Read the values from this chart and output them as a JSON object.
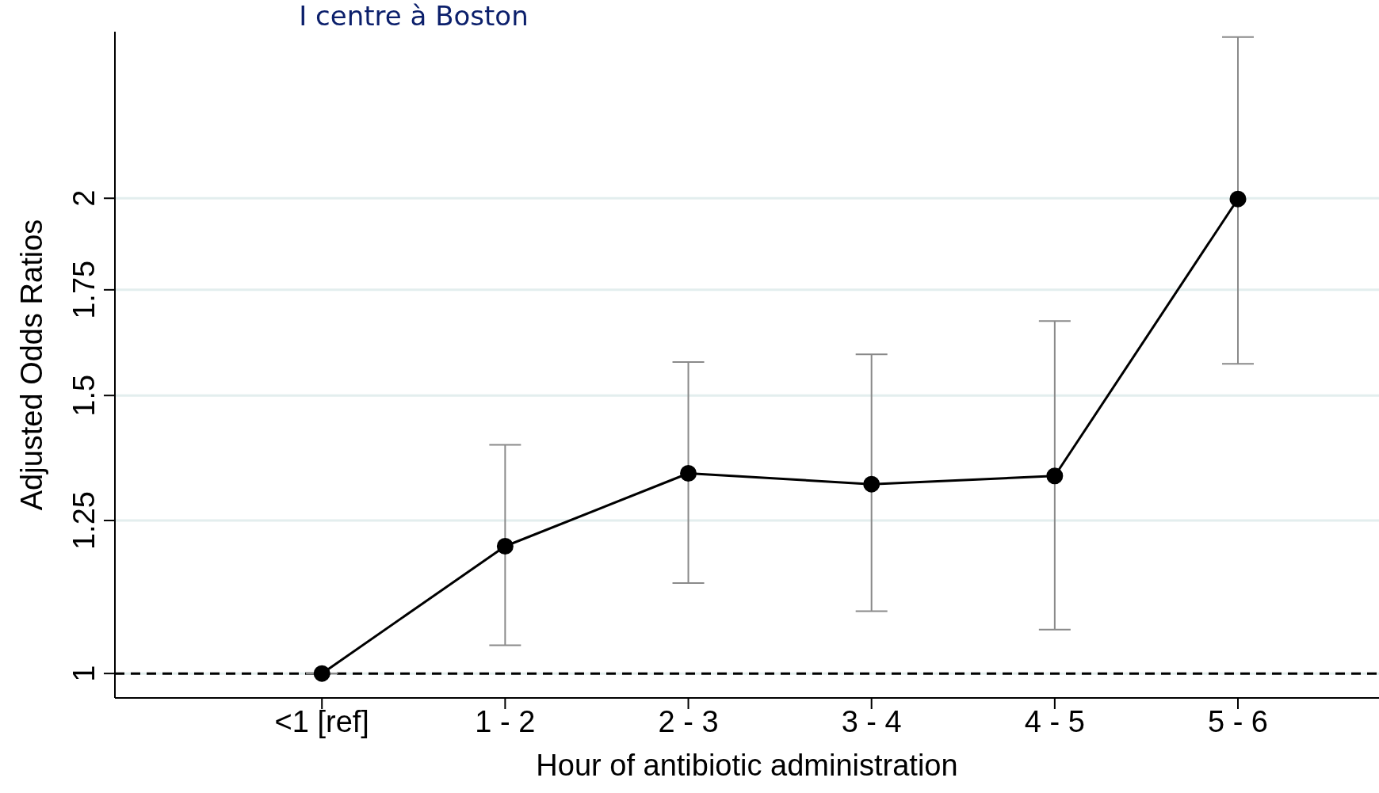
{
  "chart_data": {
    "type": "line",
    "xlabel": "Hour of antibiotic administration",
    "ylabel": "Adjusted Odds Ratios",
    "annotations": [
      "I centre à Boston"
    ],
    "categories": [
      "<1 [ref]",
      "1 - 2",
      "2 - 3",
      "3 - 4",
      "4 - 5",
      "5 - 6"
    ],
    "series": [
      {
        "color": "#000000",
        "values": [
          1,
          1.204,
          1.339,
          1.318,
          1.334,
          1.998
        ],
        "errors": [
          null,
          [
            1.042,
            1.396
          ],
          [
            1.141,
            1.575
          ],
          [
            1.095,
            1.593
          ],
          [
            1.066,
            1.672
          ],
          [
            1.571,
            2.53
          ]
        ]
      }
    ],
    "log": "y",
    "ylim": [
      0.965,
      2.55
    ],
    "yticks": [
      1,
      1.25,
      1.5,
      1.75,
      2
    ],
    "grid": "y",
    "marker": "circle",
    "line_style": "solid",
    "ref_lines": [
      {
        "axis": "y",
        "value": 1,
        "color": "#000000",
        "line_style": "dashed"
      }
    ]
  }
}
